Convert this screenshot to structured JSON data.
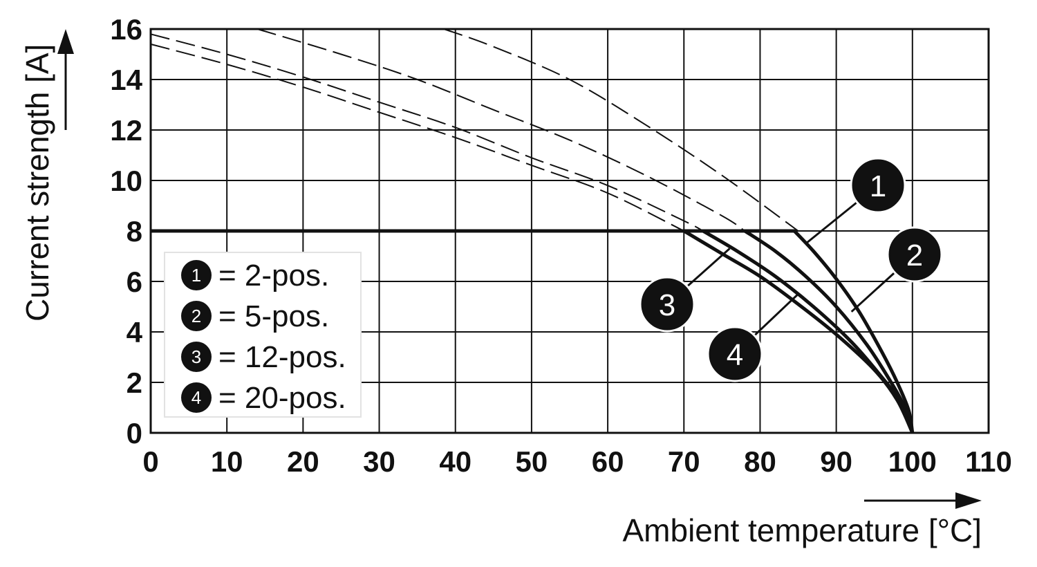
{
  "chart_data": {
    "type": "line",
    "xlabel": "Ambient temperature [°C]",
    "ylabel": "Current strength [A]",
    "xlim": [
      0,
      110
    ],
    "ylim": [
      0,
      16
    ],
    "x_ticks": [
      "0",
      "10",
      "20",
      "30",
      "40",
      "50",
      "60",
      "70",
      "80",
      "90",
      "100",
      "110"
    ],
    "y_ticks": [
      "0",
      "2",
      "4",
      "6",
      "8",
      "10",
      "12",
      "14",
      "16"
    ],
    "grid": true,
    "legend_position": "left",
    "rated_current": 8,
    "legend": [
      {
        "id": "1",
        "label": "= 2-pos."
      },
      {
        "id": "2",
        "label": "= 5-pos."
      },
      {
        "id": "3",
        "label": "= 12-pos."
      },
      {
        "id": "4",
        "label": "= 20-pos."
      }
    ],
    "derating_curves": [
      {
        "id": "1",
        "x": [
          0,
          84.5,
          87,
          90,
          93,
          96,
          98,
          99.5,
          100
        ],
        "y": [
          8,
          8,
          7.2,
          6.1,
          4.8,
          3.2,
          2,
          0.9,
          0
        ]
      },
      {
        "id": "2",
        "x": [
          0,
          78,
          82,
          86,
          90,
          94,
          97,
          99,
          100
        ],
        "y": [
          8,
          8,
          7.2,
          6.2,
          5,
          3.5,
          2.1,
          1,
          0
        ]
      },
      {
        "id": "3",
        "x": [
          0,
          72.5,
          77,
          82,
          87,
          92,
          96,
          99,
          100
        ],
        "y": [
          8,
          8,
          7.2,
          6.2,
          5,
          3.6,
          2.2,
          1,
          0
        ]
      },
      {
        "id": "4",
        "x": [
          0,
          70,
          75,
          80,
          85,
          90,
          95,
          98,
          100
        ],
        "y": [
          8,
          8,
          7.1,
          6.2,
          5.1,
          3.9,
          2.5,
          1.3,
          0
        ]
      }
    ],
    "limit_curves": [
      {
        "id": "1",
        "x": [
          38.5,
          45,
          55,
          65,
          75,
          85
        ],
        "y": [
          16,
          15.3,
          14,
          12.2,
          10.2,
          8
        ]
      },
      {
        "id": "2",
        "x": [
          14,
          25,
          35,
          45,
          55,
          65,
          75,
          78
        ],
        "y": [
          16,
          15,
          14,
          12.8,
          11.6,
          10.2,
          8.6,
          8
        ]
      },
      {
        "id": "3",
        "x": [
          0,
          10,
          20,
          30,
          40,
          50,
          60,
          70,
          72.5
        ],
        "y": [
          15.8,
          15,
          14.1,
          13.1,
          12.1,
          10.9,
          9.8,
          8.4,
          8
        ]
      },
      {
        "id": "4",
        "x": [
          0,
          10,
          20,
          30,
          40,
          50,
          60,
          70
        ],
        "y": [
          15.4,
          14.6,
          13.7,
          12.7,
          11.7,
          10.6,
          9.5,
          8
        ]
      }
    ],
    "curve_markers": [
      {
        "id": "1",
        "x": 86,
        "y": 7.5
      },
      {
        "id": "2",
        "x": 92,
        "y": 4.8
      },
      {
        "id": "3",
        "x": 76,
        "y": 7.3
      },
      {
        "id": "4",
        "x": 85,
        "y": 5.5
      }
    ]
  }
}
